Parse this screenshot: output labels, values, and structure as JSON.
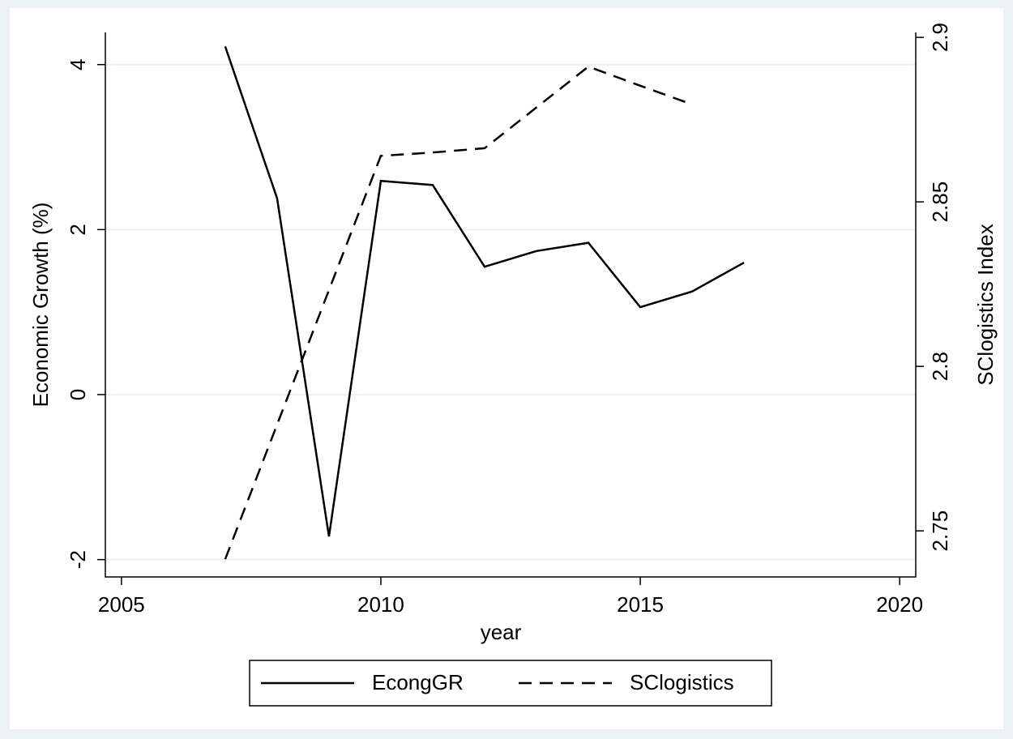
{
  "chart_data": {
    "type": "line",
    "x": [
      2007,
      2008,
      2009,
      2010,
      2011,
      2012,
      2013,
      2014,
      2015,
      2016,
      2017
    ],
    "series": [
      {
        "name": "EcongGR",
        "color": "#000000",
        "dash": "solid",
        "values": [
          4.22,
          2.38,
          -1.72,
          2.59,
          2.54,
          1.55,
          1.74,
          1.84,
          1.06,
          1.25,
          1.6
        ]
      },
      {
        "name": "SClogistics",
        "color": "#000000",
        "dash": "dashed",
        "axis": "y2",
        "values": [
          2.7414,
          2.7823,
          2.8232,
          2.864,
          2.865,
          2.8663,
          2.8787,
          2.8911,
          2.8853,
          2.8796,
          null
        ]
      }
    ],
    "xlabel": "year",
    "ylabel": "Economic Growth (%)",
    "y2label": "SClogistics Index",
    "xlim": [
      2004.69,
      2020.31
    ],
    "xticks": [
      2005,
      2010,
      2015,
      2020
    ],
    "ylim": [
      -2.21,
      4.39
    ],
    "yticks": [
      -2,
      0,
      2,
      4
    ],
    "y2lim": [
      2.736,
      2.9015
    ],
    "y2ticks": [
      2.75,
      2.8,
      2.85,
      2.9
    ],
    "grid": true,
    "legend": "bottom"
  }
}
